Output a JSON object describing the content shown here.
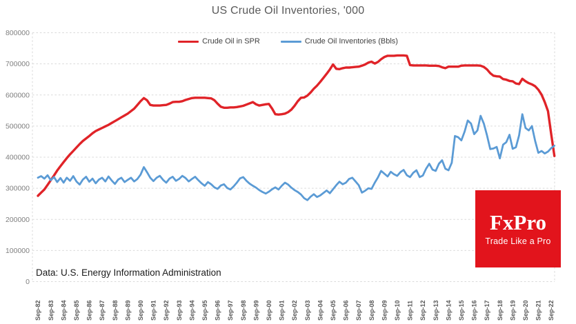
{
  "title": "US Crude Oil Inventories, '000",
  "caption": "Data: U.S. Energy Information Administration",
  "logo": {
    "brand": "FxPro",
    "tagline": "Trade Like a Pro",
    "bg_color": "#e2141c",
    "text_color": "#ffffff"
  },
  "chart_data": {
    "type": "line",
    "title": "US Crude Oil Inventories, '000",
    "units": "thousand barrels ('000 Bbls)",
    "x_start_label": "Sep-82",
    "x_step_years": 0.25,
    "x_tick_labels": [
      "Sep-82",
      "Sep-83",
      "Sep-84",
      "Sep-85",
      "Sep-86",
      "Sep-87",
      "Sep-88",
      "Sep-89",
      "Sep-90",
      "Sep-91",
      "Sep-92",
      "Sep-93",
      "Sep-94",
      "Sep-95",
      "Sep-96",
      "Sep-97",
      "Sep-98",
      "Sep-99",
      "Sep-00",
      "Sep-01",
      "Sep-02",
      "Sep-03",
      "Sep-04",
      "Sep-05",
      "Sep-06",
      "Sep-07",
      "Sep-08",
      "Sep-09",
      "Sep-10",
      "Sep-11",
      "Sep-12",
      "Sep-13",
      "Sep-14",
      "Sep-15",
      "Sep-16",
      "Sep-17",
      "Sep-18",
      "Sep-19",
      "Sep-20",
      "Sep-21",
      "Sep-22"
    ],
    "ylim": [
      0,
      800000
    ],
    "y_tick_step": 100000,
    "y_tick_labels": [
      "0",
      "100000",
      "200000",
      "300000",
      "400000",
      "500000",
      "600000",
      "700000",
      "800000"
    ],
    "grid": "horizontal-dashed",
    "grid_color": "#d9d9d9",
    "legend_position": "top-center",
    "series": [
      {
        "name": "Crude Oil in SPR",
        "color": "#e02328",
        "values": [
          276000,
          286000,
          296000,
          311000,
          326000,
          341000,
          357000,
          371000,
          384000,
          397000,
          409000,
          420000,
          431000,
          442000,
          452000,
          460000,
          468000,
          477000,
          484000,
          489000,
          494000,
          499000,
          504000,
          510000,
          516000,
          522000,
          528000,
          534000,
          540000,
          548000,
          556000,
          568000,
          580000,
          590000,
          583000,
          568000,
          566000,
          566000,
          566000,
          567000,
          568000,
          572000,
          577000,
          578000,
          578000,
          580000,
          584000,
          587000,
          590000,
          591000,
          591000,
          591000,
          591000,
          590000,
          589000,
          583000,
          572000,
          562000,
          559000,
          559000,
          560000,
          560000,
          561000,
          563000,
          565000,
          569000,
          573000,
          577000,
          570000,
          566000,
          568000,
          570000,
          571000,
          556000,
          538000,
          537000,
          538000,
          540000,
          545000,
          553000,
          565000,
          580000,
          591000,
          592000,
          598000,
          608000,
          620000,
          630000,
          642000,
          655000,
          668000,
          682000,
          698000,
          684000,
          683000,
          686000,
          688000,
          688000,
          689000,
          690000,
          691000,
          694000,
          698000,
          704000,
          707000,
          701000,
          706000,
          715000,
          722000,
          726000,
          726000,
          726000,
          727000,
          727000,
          727000,
          726000,
          696000,
          695000,
          695000,
          695000,
          695000,
          695000,
          694000,
          694000,
          694000,
          693000,
          689000,
          686000,
          691000,
          691000,
          691000,
          691000,
          694000,
          695000,
          695000,
          695000,
          695000,
          695000,
          694000,
          690000,
          682000,
          670000,
          662000,
          660000,
          659000,
          651000,
          649000,
          645000,
          644000,
          637000,
          635000,
          652000,
          644000,
          638000,
          634000,
          628000,
          617000,
          601000,
          577000,
          548000,
          475000,
          404000
        ]
      },
      {
        "name": "Crude Oil Inventories (Bbls)",
        "color": "#5b9bd5",
        "values": [
          334000,
          339000,
          331000,
          342000,
          326000,
          336000,
          320000,
          333000,
          318000,
          334000,
          324000,
          339000,
          322000,
          312000,
          328000,
          337000,
          321000,
          331000,
          316000,
          328000,
          334000,
          322000,
          338000,
          325000,
          314000,
          328000,
          334000,
          320000,
          327000,
          334000,
          322000,
          330000,
          344000,
          368000,
          352000,
          334000,
          323000,
          334000,
          340000,
          327000,
          318000,
          331000,
          337000,
          324000,
          330000,
          340000,
          333000,
          322000,
          330000,
          337000,
          326000,
          316000,
          308000,
          320000,
          313000,
          303000,
          298000,
          309000,
          313000,
          301000,
          296000,
          306000,
          318000,
          332000,
          336000,
          324000,
          315000,
          308000,
          302000,
          294000,
          288000,
          283000,
          289000,
          297000,
          303000,
          296000,
          308000,
          318000,
          312000,
          302000,
          294000,
          288000,
          280000,
          268000,
          262000,
          273000,
          281000,
          272000,
          277000,
          285000,
          293000,
          284000,
          297000,
          310000,
          321000,
          313000,
          318000,
          330000,
          334000,
          322000,
          310000,
          286000,
          292000,
          300000,
          298000,
          318000,
          335000,
          356000,
          347000,
          338000,
          353000,
          345000,
          340000,
          352000,
          359000,
          342000,
          336000,
          350000,
          358000,
          336000,
          341000,
          363000,
          379000,
          360000,
          356000,
          379000,
          390000,
          363000,
          358000,
          382000,
          468000,
          464000,
          454000,
          482000,
          518000,
          508000,
          474000,
          486000,
          533000,
          508000,
          470000,
          426000,
          428000,
          433000,
          396000,
          440000,
          448000,
          472000,
          427000,
          432000,
          470000,
          538000,
          494000,
          486000,
          500000,
          452000,
          414000,
          420000,
          412000,
          418000,
          429000,
          437000
        ]
      }
    ]
  },
  "colors": {
    "title": "#595959",
    "y_axis_labels": "#7f7f7f",
    "x_axis_labels": "#595959",
    "gridlines": "#d9d9d9",
    "caption": "#1a1a1a",
    "background": "#ffffff"
  }
}
